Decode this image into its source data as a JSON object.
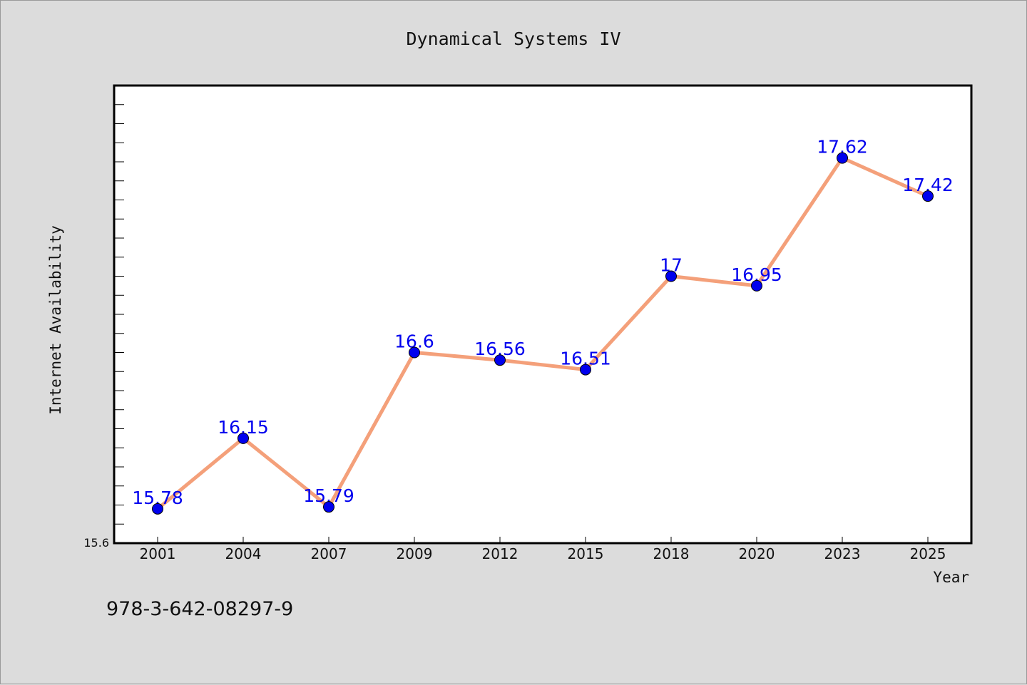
{
  "isbn": "978-3-642-08297-9",
  "chart_data": {
    "type": "line",
    "title": "Dynamical Systems IV",
    "xlabel": "Year",
    "ylabel": "Internet Availability",
    "categories": [
      "2001",
      "2004",
      "2007",
      "2009",
      "2012",
      "2015",
      "2018",
      "2020",
      "2023",
      "2025"
    ],
    "values": [
      15.78,
      16.15,
      15.79,
      16.6,
      16.56,
      16.51,
      17,
      16.95,
      17.62,
      17.42
    ],
    "data_labels": [
      "15.78",
      "16.15",
      "15.79",
      "16.6",
      "16.56",
      "16.51",
      "17",
      "16.95",
      "17.62",
      "17.42"
    ],
    "ylim": [
      15.6,
      18.0
    ],
    "y_tick_labels": [
      "15.6"
    ],
    "line_color": "#f4a07a",
    "marker_color": "#0000ee",
    "label_color": "#0000ee",
    "grid": false,
    "legend": "none"
  }
}
